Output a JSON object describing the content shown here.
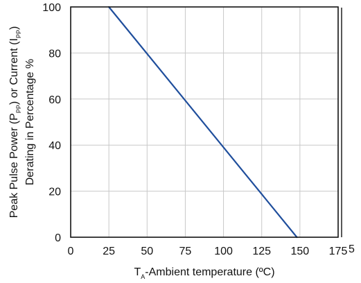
{
  "chart_data": {
    "type": "line",
    "title": "",
    "xlabel_parts": {
      "main": "T",
      "sub": "A",
      "rest": "-Ambient temperature (ºC)"
    },
    "ylabel_line1_parts": {
      "a": "Peak Pulse Power (P",
      "sub1": "PP",
      "b": ") or Current (I",
      "sub2": "PP",
      "c": ")"
    },
    "ylabel_line2": "Derating in Percentage %",
    "xlim": [
      0,
      175
    ],
    "ylim": [
      0,
      100
    ],
    "x_ticks": [
      0,
      25,
      50,
      75,
      100,
      125,
      150,
      175
    ],
    "x_tick_labels": [
      "0",
      "25",
      "50",
      "75",
      "100",
      "125",
      "150",
      "175"
    ],
    "y_ticks": [
      0,
      20,
      40,
      60,
      80,
      100
    ],
    "y_tick_labels": [
      "0",
      "20",
      "40",
      "60",
      "80",
      "100"
    ],
    "grid": true,
    "series": [
      {
        "color": "#1f4e9c",
        "x": [
          25,
          148
        ],
        "y": [
          100,
          0
        ]
      }
    ],
    "edge_glyph": "5"
  }
}
